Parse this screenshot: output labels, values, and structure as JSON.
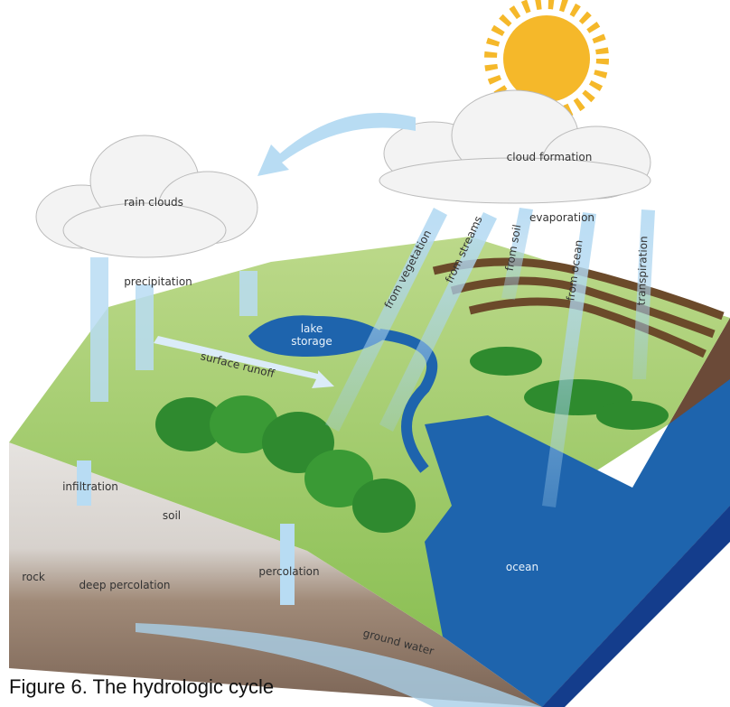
{
  "labels": {
    "rain_clouds": "rain clouds",
    "cloud_formation": "cloud formation",
    "precipitation": "precipitation",
    "lake": "lake",
    "storage": "storage",
    "surface_runoff": "surface runoff",
    "from_vegetation": "from vegetation",
    "from_streams": "from streams",
    "from_soil": "from soil",
    "evaporation": "evaporation",
    "from_ocean": "from ocean",
    "transpiration": "transpiration",
    "infiltration": "infiltration",
    "soil": "soil",
    "percolation": "percolation",
    "rock": "rock",
    "deep_percolation": "deep percolation",
    "ocean": "ocean",
    "ground_water": "ground water"
  },
  "caption": "Figure 6.  The hydrologic cycle"
}
